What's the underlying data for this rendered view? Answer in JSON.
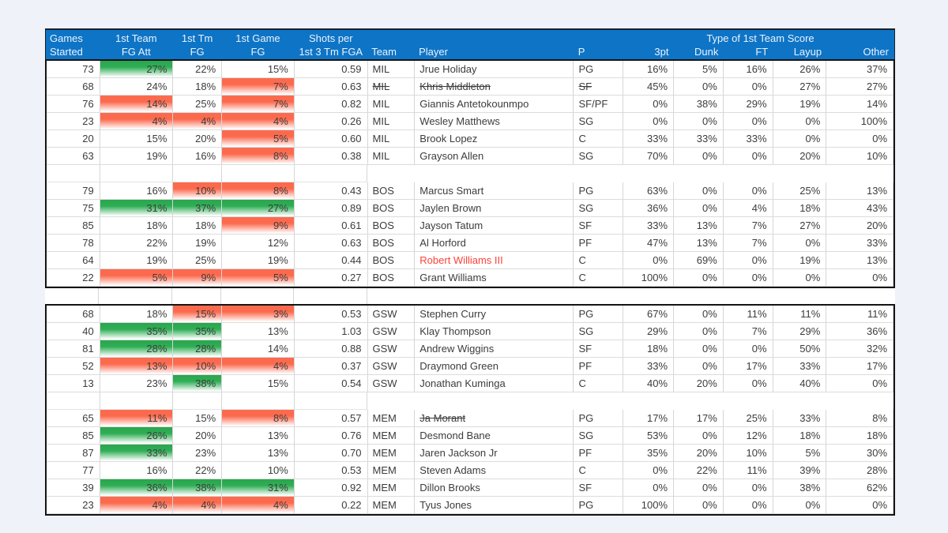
{
  "colors": {
    "header_blue": "#0e74c6",
    "positive_green": "#2aa54e",
    "negative_red": "#fc6a4e",
    "alert_text_red": "#ff4136",
    "grid_line": "#d6d6d6",
    "block_border": "#141414"
  },
  "header": {
    "group_title": "Type of 1st Team Score",
    "cols": [
      {
        "l1": "Games",
        "l2": "Started",
        "align": "l"
      },
      {
        "l1": "1st Team",
        "l2": "FG Att",
        "align": "c"
      },
      {
        "l1": "1st Tm",
        "l2": "FG",
        "align": "c"
      },
      {
        "l1": "1st Game",
        "l2": "FG",
        "align": "c"
      },
      {
        "l1": "Shots per",
        "l2": "1st 3 Tm FGA",
        "align": "c"
      },
      {
        "l1": "",
        "l2": "Team",
        "align": "l"
      },
      {
        "l1": "",
        "l2": "Player",
        "align": "l"
      },
      {
        "l1": "",
        "l2": "P",
        "align": "l"
      },
      {
        "l1": "",
        "l2": "3pt",
        "align": "r"
      },
      {
        "l1": "",
        "l2": "Dunk",
        "align": "r"
      },
      {
        "l1": "",
        "l2": "FT",
        "align": "r"
      },
      {
        "l1": "",
        "l2": "Layup",
        "align": "r"
      },
      {
        "l1": "",
        "l2": "Other",
        "align": "r"
      }
    ]
  },
  "blocks": [
    {
      "sections": [
        {
          "team": "MIL",
          "rows": [
            {
              "gs": "73",
              "att": "27%",
              "fg": "22%",
              "game": "15%",
              "spf": "0.59",
              "team": "MIL",
              "player": "Jrue Holiday",
              "pos": "PG",
              "p3": "16%",
              "dunk": "5%",
              "ft": "16%",
              "layup": "26%",
              "other": "37%",
              "hl": {
                "att": "green"
              }
            },
            {
              "gs": "68",
              "att": "24%",
              "fg": "18%",
              "game": "7%",
              "spf": "0.63",
              "team": "MIL",
              "player": "Khris Middleton",
              "pos": "SF",
              "p3": "45%",
              "dunk": "0%",
              "ft": "0%",
              "layup": "27%",
              "other": "27%",
              "hl": {
                "game": "red"
              },
              "strike": [
                "team",
                "player",
                "pos"
              ]
            },
            {
              "gs": "76",
              "att": "14%",
              "fg": "25%",
              "game": "7%",
              "spf": "0.82",
              "team": "MIL",
              "player": "Giannis Antetokounmpo",
              "pos": "SF/PF",
              "p3": "0%",
              "dunk": "38%",
              "ft": "29%",
              "layup": "19%",
              "other": "14%",
              "hl": {
                "att": "red",
                "game": "red"
              }
            },
            {
              "gs": "23",
              "att": "4%",
              "fg": "4%",
              "game": "4%",
              "spf": "0.26",
              "team": "MIL",
              "player": "Wesley Matthews",
              "pos": "SG",
              "p3": "0%",
              "dunk": "0%",
              "ft": "0%",
              "layup": "0%",
              "other": "100%",
              "hl": {
                "att": "red",
                "fg": "red",
                "game": "red"
              }
            },
            {
              "gs": "20",
              "att": "15%",
              "fg": "20%",
              "game": "5%",
              "spf": "0.60",
              "team": "MIL",
              "player": "Brook Lopez",
              "pos": "C",
              "p3": "33%",
              "dunk": "33%",
              "ft": "33%",
              "layup": "0%",
              "other": "0%",
              "hl": {
                "game": "red"
              }
            },
            {
              "gs": "63",
              "att": "19%",
              "fg": "16%",
              "game": "8%",
              "spf": "0.38",
              "team": "MIL",
              "player": "Grayson Allen",
              "pos": "SG",
              "p3": "70%",
              "dunk": "0%",
              "ft": "0%",
              "layup": "20%",
              "other": "10%",
              "hl": {
                "game": "red"
              }
            }
          ]
        },
        {
          "team": "BOS",
          "rows": [
            {
              "gs": "79",
              "att": "16%",
              "fg": "10%",
              "game": "8%",
              "spf": "0.43",
              "team": "BOS",
              "player": "Marcus Smart",
              "pos": "PG",
              "p3": "63%",
              "dunk": "0%",
              "ft": "0%",
              "layup": "25%",
              "other": "13%",
              "hl": {
                "fg": "red",
                "game": "red"
              }
            },
            {
              "gs": "75",
              "att": "31%",
              "fg": "37%",
              "game": "27%",
              "spf": "0.89",
              "team": "BOS",
              "player": "Jaylen Brown",
              "pos": "SG",
              "p3": "36%",
              "dunk": "0%",
              "ft": "4%",
              "layup": "18%",
              "other": "43%",
              "hl": {
                "att": "green",
                "fg": "green",
                "game": "green"
              }
            },
            {
              "gs": "85",
              "att": "18%",
              "fg": "18%",
              "game": "9%",
              "spf": "0.61",
              "team": "BOS",
              "player": "Jayson Tatum",
              "pos": "SF",
              "p3": "33%",
              "dunk": "13%",
              "ft": "7%",
              "layup": "27%",
              "other": "20%",
              "hl": {
                "game": "red"
              }
            },
            {
              "gs": "78",
              "att": "22%",
              "fg": "19%",
              "game": "12%",
              "spf": "0.63",
              "team": "BOS",
              "player": "Al Horford",
              "pos": "PF",
              "p3": "47%",
              "dunk": "13%",
              "ft": "7%",
              "layup": "0%",
              "other": "33%"
            },
            {
              "gs": "64",
              "att": "19%",
              "fg": "25%",
              "game": "19%",
              "spf": "0.44",
              "team": "BOS",
              "player": "Robert Williams III",
              "pos": "C",
              "p3": "0%",
              "dunk": "69%",
              "ft": "0%",
              "layup": "19%",
              "other": "13%",
              "red_text": true
            },
            {
              "gs": "22",
              "att": "5%",
              "fg": "9%",
              "game": "5%",
              "spf": "0.27",
              "team": "BOS",
              "player": "Grant Williams",
              "pos": "C",
              "p3": "100%",
              "dunk": "0%",
              "ft": "0%",
              "layup": "0%",
              "other": "0%",
              "hl": {
                "att": "red",
                "fg": "red",
                "game": "red"
              }
            }
          ]
        }
      ]
    },
    {
      "sections": [
        {
          "team": "GSW",
          "rows": [
            {
              "gs": "68",
              "att": "18%",
              "fg": "15%",
              "game": "3%",
              "spf": "0.53",
              "team": "GSW",
              "player": "Stephen Curry",
              "pos": "PG",
              "p3": "67%",
              "dunk": "0%",
              "ft": "11%",
              "layup": "11%",
              "other": "11%",
              "hl": {
                "fg": "red",
                "game": "red"
              }
            },
            {
              "gs": "40",
              "att": "35%",
              "fg": "35%",
              "game": "13%",
              "spf": "1.03",
              "team": "GSW",
              "player": "Klay Thompson",
              "pos": "SG",
              "p3": "29%",
              "dunk": "0%",
              "ft": "7%",
              "layup": "29%",
              "other": "36%",
              "hl": {
                "att": "green",
                "fg": "green"
              }
            },
            {
              "gs": "81",
              "att": "28%",
              "fg": "28%",
              "game": "14%",
              "spf": "0.88",
              "team": "GSW",
              "player": "Andrew Wiggins",
              "pos": "SF",
              "p3": "18%",
              "dunk": "0%",
              "ft": "0%",
              "layup": "50%",
              "other": "32%",
              "hl": {
                "att": "green",
                "fg": "green"
              }
            },
            {
              "gs": "52",
              "att": "13%",
              "fg": "10%",
              "game": "4%",
              "spf": "0.37",
              "team": "GSW",
              "player": "Draymond Green",
              "pos": "PF",
              "p3": "33%",
              "dunk": "0%",
              "ft": "17%",
              "layup": "33%",
              "other": "17%",
              "hl": {
                "att": "red",
                "fg": "red",
                "game": "red"
              }
            },
            {
              "gs": "13",
              "att": "23%",
              "fg": "38%",
              "game": "15%",
              "spf": "0.54",
              "team": "GSW",
              "player": "Jonathan Kuminga",
              "pos": "C",
              "p3": "40%",
              "dunk": "20%",
              "ft": "0%",
              "layup": "40%",
              "other": "0%",
              "hl": {
                "fg": "green"
              }
            }
          ]
        },
        {
          "team": "MEM",
          "rows": [
            {
              "gs": "65",
              "att": "11%",
              "fg": "15%",
              "game": "8%",
              "spf": "0.57",
              "team": "MEM",
              "player": "Ja Morant",
              "pos": "PG",
              "p3": "17%",
              "dunk": "17%",
              "ft": "25%",
              "layup": "33%",
              "other": "8%",
              "hl": {
                "att": "red",
                "game": "red"
              },
              "strike": [
                "player"
              ]
            },
            {
              "gs": "85",
              "att": "26%",
              "fg": "20%",
              "game": "13%",
              "spf": "0.76",
              "team": "MEM",
              "player": "Desmond Bane",
              "pos": "SG",
              "p3": "53%",
              "dunk": "0%",
              "ft": "12%",
              "layup": "18%",
              "other": "18%",
              "hl": {
                "att": "green"
              }
            },
            {
              "gs": "87",
              "att": "33%",
              "fg": "23%",
              "game": "13%",
              "spf": "0.70",
              "team": "MEM",
              "player": "Jaren Jackson Jr",
              "pos": "PF",
              "p3": "35%",
              "dunk": "20%",
              "ft": "10%",
              "layup": "5%",
              "other": "30%",
              "hl": {
                "att": "green"
              }
            },
            {
              "gs": "77",
              "att": "16%",
              "fg": "22%",
              "game": "10%",
              "spf": "0.53",
              "team": "MEM",
              "player": "Steven Adams",
              "pos": "C",
              "p3": "0%",
              "dunk": "22%",
              "ft": "11%",
              "layup": "39%",
              "other": "28%"
            },
            {
              "gs": "39",
              "att": "36%",
              "fg": "38%",
              "game": "31%",
              "spf": "0.92",
              "team": "MEM",
              "player": "Dillon Brooks",
              "pos": "SF",
              "p3": "0%",
              "dunk": "0%",
              "ft": "0%",
              "layup": "38%",
              "other": "62%",
              "hl": {
                "att": "green",
                "fg": "green",
                "game": "green"
              }
            },
            {
              "gs": "23",
              "att": "4%",
              "fg": "4%",
              "game": "4%",
              "spf": "0.22",
              "team": "MEM",
              "player": "Tyus Jones",
              "pos": "PG",
              "p3": "100%",
              "dunk": "0%",
              "ft": "0%",
              "layup": "0%",
              "other": "0%",
              "hl": {
                "att": "red",
                "fg": "red",
                "game": "red"
              }
            }
          ]
        }
      ]
    }
  ]
}
